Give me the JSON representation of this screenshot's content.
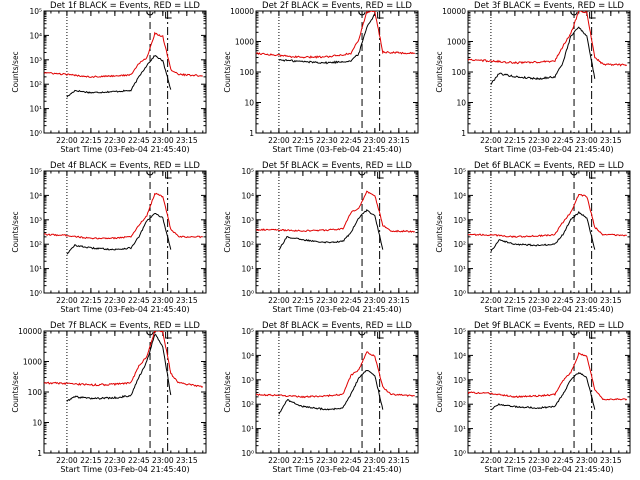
{
  "chart_data": [
    {
      "type": "line",
      "title": "Det 1f BLACK = Events, RED = LLD",
      "xlabel": "Start Time (03-Feb-04 21:45:40)",
      "ylabel": "Counts/sec",
      "x_ticks": [
        "22:00",
        "22:15",
        "22:30",
        "22:45",
        "23:00",
        "23:15"
      ],
      "y_scale": "log",
      "ylim": [
        1,
        100000
      ],
      "y_ticks": [
        "10⁰",
        "10¹",
        "10²",
        "10³",
        "10⁴",
        "10⁵"
      ],
      "series": [
        {
          "color": "#000000",
          "x": [
            "22:00",
            "22:05",
            "22:15",
            "22:30",
            "22:40",
            "22:45",
            "22:50",
            "22:55",
            "23:00",
            "23:05"
          ],
          "values": [
            30,
            55,
            45,
            50,
            55,
            200,
            600,
            1500,
            900,
            60
          ]
        },
        {
          "color": "#e00000",
          "x": [
            "21:45",
            "22:00",
            "22:15",
            "22:30",
            "22:40",
            "22:45",
            "22:50",
            "22:55",
            "23:00",
            "23:05",
            "23:10",
            "23:25"
          ],
          "values": [
            300,
            250,
            200,
            220,
            240,
            700,
            1200,
            12000,
            9000,
            400,
            250,
            220
          ]
        }
      ],
      "v_lines": [
        {
          "style": "dotted",
          "x": "22:00"
        },
        {
          "style": "dashed",
          "x": "22:52"
        },
        {
          "style": "dashdot",
          "x": "23:03"
        }
      ]
    },
    {
      "type": "line",
      "title": "Det 2f BLACK = Events, RED = LLD",
      "xlabel": "Start Time (03-Feb-04 21:45:40)",
      "ylabel": "Counts/sec",
      "x_ticks": [
        "22:00",
        "22:15",
        "22:30",
        "22:45",
        "23:00",
        "23:15"
      ],
      "y_scale": "log",
      "ylim": [
        1,
        10000
      ],
      "y_ticks": [
        "1",
        "10",
        "100",
        "1000",
        "10000"
      ],
      "series": [
        {
          "color": "#000000",
          "x": [
            "22:00",
            "22:15",
            "22:30",
            "22:45",
            "22:50",
            "22:55",
            "23:00"
          ],
          "values": [
            250,
            220,
            200,
            230,
            400,
            3000,
            8000
          ]
        },
        {
          "color": "#e00000",
          "x": [
            "21:45",
            "22:00",
            "22:15",
            "22:30",
            "22:45",
            "22:50",
            "22:55",
            "23:00",
            "23:05",
            "23:25"
          ],
          "values": [
            420,
            350,
            300,
            320,
            400,
            1200,
            9500,
            9500,
            450,
            400
          ]
        }
      ],
      "v_lines": [
        {
          "style": "dotted",
          "x": "22:00"
        },
        {
          "style": "dashed",
          "x": "22:52"
        },
        {
          "style": "dashdot",
          "x": "23:03"
        }
      ]
    },
    {
      "type": "line",
      "title": "Det 3f BLACK = Events, RED = LLD",
      "xlabel": "Start Time (03-Feb-04 21:45:40)",
      "ylabel": "Counts/sec",
      "x_ticks": [
        "22:00",
        "22:15",
        "22:30",
        "22:45",
        "23:00",
        "23:15"
      ],
      "y_scale": "log",
      "ylim": [
        1,
        10000
      ],
      "y_ticks": [
        "1",
        "10",
        "100",
        "1000",
        "10000"
      ],
      "series": [
        {
          "color": "#000000",
          "x": [
            "22:00",
            "22:05",
            "22:15",
            "22:30",
            "22:40",
            "22:45",
            "22:50",
            "22:55",
            "23:00",
            "23:05"
          ],
          "values": [
            40,
            90,
            70,
            60,
            70,
            200,
            1500,
            3000,
            1500,
            60
          ]
        },
        {
          "color": "#e00000",
          "x": [
            "21:45",
            "22:00",
            "22:15",
            "22:30",
            "22:40",
            "22:45",
            "22:50",
            "22:55",
            "23:00",
            "23:05",
            "23:10",
            "23:25"
          ],
          "values": [
            250,
            230,
            200,
            210,
            230,
            700,
            1800,
            10000,
            9000,
            300,
            180,
            170
          ]
        }
      ],
      "v_lines": [
        {
          "style": "dotted",
          "x": "22:00"
        },
        {
          "style": "dashed",
          "x": "22:52"
        },
        {
          "style": "dashdot",
          "x": "23:03"
        }
      ]
    },
    {
      "type": "line",
      "title": "Det 4f BLACK = Events, RED = LLD",
      "xlabel": "Start Time (03-Feb-04 21:45:40)",
      "ylabel": "Counts/sec",
      "x_ticks": [
        "22:00",
        "22:15",
        "22:30",
        "22:45",
        "23:00",
        "23:15"
      ],
      "y_scale": "log",
      "ylim": [
        1,
        100000
      ],
      "y_ticks": [
        "10⁰",
        "10¹",
        "10²",
        "10³",
        "10⁴",
        "10⁵"
      ],
      "series": [
        {
          "color": "#000000",
          "x": [
            "22:00",
            "22:05",
            "22:15",
            "22:30",
            "22:40",
            "22:45",
            "22:50",
            "22:55",
            "23:00",
            "23:05"
          ],
          "values": [
            40,
            90,
            70,
            60,
            70,
            200,
            900,
            1800,
            1200,
            60
          ]
        },
        {
          "color": "#e00000",
          "x": [
            "21:45",
            "22:00",
            "22:15",
            "22:30",
            "22:40",
            "22:45",
            "22:50",
            "22:55",
            "23:00",
            "23:05",
            "23:10",
            "23:25"
          ],
          "values": [
            250,
            230,
            170,
            180,
            200,
            600,
            1500,
            12000,
            9000,
            400,
            200,
            200
          ]
        }
      ],
      "v_lines": [
        {
          "style": "dotted",
          "x": "22:00"
        },
        {
          "style": "dashed",
          "x": "22:52"
        },
        {
          "style": "dashdot",
          "x": "23:03"
        }
      ]
    },
    {
      "type": "line",
      "title": "Det 5f BLACK = Events, RED = LLD",
      "xlabel": "Start Time (03-Feb-04 21:45:40)",
      "ylabel": "Counts/sec",
      "x_ticks": [
        "22:00",
        "22:15",
        "22:30",
        "22:45",
        "23:00",
        "23:15"
      ],
      "y_scale": "log",
      "ylim": [
        1,
        100000
      ],
      "y_ticks": [
        "10⁰",
        "10¹",
        "10²",
        "10³",
        "10⁴",
        "10⁵"
      ],
      "series": [
        {
          "color": "#000000",
          "x": [
            "22:00",
            "22:05",
            "22:15",
            "22:30",
            "22:40",
            "22:45",
            "22:50",
            "22:55",
            "23:00",
            "23:05"
          ],
          "values": [
            60,
            200,
            150,
            120,
            130,
            300,
            1200,
            2500,
            1500,
            60
          ]
        },
        {
          "color": "#e00000",
          "x": [
            "21:45",
            "22:00",
            "22:15",
            "22:30",
            "22:40",
            "22:45",
            "22:50",
            "22:55",
            "23:00",
            "23:05",
            "23:10",
            "23:25"
          ],
          "values": [
            400,
            380,
            350,
            380,
            420,
            2000,
            3000,
            14000,
            10000,
            600,
            350,
            330
          ]
        }
      ],
      "v_lines": [
        {
          "style": "dotted",
          "x": "22:00"
        },
        {
          "style": "dashed",
          "x": "22:52"
        },
        {
          "style": "dashdot",
          "x": "23:03"
        }
      ]
    },
    {
      "type": "line",
      "title": "Det 6f BLACK = Events, RED = LLD",
      "xlabel": "Start Time (03-Feb-04 21:45:40)",
      "ylabel": "Counts/sec",
      "x_ticks": [
        "22:00",
        "22:15",
        "22:30",
        "22:45",
        "23:00",
        "23:15"
      ],
      "y_scale": "log",
      "ylim": [
        1,
        100000
      ],
      "y_ticks": [
        "10⁰",
        "10¹",
        "10²",
        "10³",
        "10⁴",
        "10⁵"
      ],
      "series": [
        {
          "color": "#000000",
          "x": [
            "22:00",
            "22:05",
            "22:15",
            "22:30",
            "22:40",
            "22:45",
            "22:50",
            "22:55",
            "23:00",
            "23:05"
          ],
          "values": [
            50,
            150,
            100,
            90,
            100,
            250,
            1000,
            2000,
            1200,
            60
          ]
        },
        {
          "color": "#e00000",
          "x": [
            "21:45",
            "22:00",
            "22:15",
            "22:30",
            "22:40",
            "22:45",
            "22:50",
            "22:55",
            "23:00",
            "23:05",
            "23:10",
            "23:25"
          ],
          "values": [
            250,
            240,
            200,
            220,
            250,
            800,
            2000,
            11000,
            9000,
            500,
            250,
            230
          ]
        }
      ],
      "v_lines": [
        {
          "style": "dotted",
          "x": "22:00"
        },
        {
          "style": "dashed",
          "x": "22:52"
        },
        {
          "style": "dashdot",
          "x": "23:03"
        }
      ]
    },
    {
      "type": "line",
      "title": "Det 7f BLACK = Events, RED = LLD",
      "xlabel": "Start Time (03-Feb-04 21:45:40)",
      "ylabel": "Counts/sec",
      "x_ticks": [
        "22:00",
        "22:15",
        "22:30",
        "22:45",
        "23:00",
        "23:15"
      ],
      "y_scale": "log",
      "ylim": [
        1,
        10000
      ],
      "y_ticks": [
        "1",
        "10",
        "100",
        "1000",
        "10000"
      ],
      "series": [
        {
          "color": "#000000",
          "x": [
            "22:00",
            "22:05",
            "22:15",
            "22:30",
            "22:40",
            "22:45",
            "22:50",
            "22:55",
            "23:00",
            "23:05"
          ],
          "values": [
            50,
            70,
            60,
            65,
            75,
            300,
            1000,
            8000,
            3000,
            80
          ]
        },
        {
          "color": "#e00000",
          "x": [
            "21:45",
            "22:00",
            "22:15",
            "22:30",
            "22:40",
            "22:45",
            "22:50",
            "22:55",
            "23:00",
            "23:05",
            "23:10",
            "23:25"
          ],
          "values": [
            200,
            190,
            170,
            180,
            200,
            700,
            1500,
            10000,
            9500,
            400,
            200,
            150
          ]
        }
      ],
      "v_lines": [
        {
          "style": "dotted",
          "x": "22:00"
        },
        {
          "style": "dashed",
          "x": "22:52"
        },
        {
          "style": "dashdot",
          "x": "23:03"
        }
      ]
    },
    {
      "type": "line",
      "title": "Det 8f BLACK = Events, RED = LLD",
      "xlabel": "Start Time (03-Feb-04 21:45:40)",
      "ylabel": "Counts/sec",
      "x_ticks": [
        "22:00",
        "22:15",
        "22:30",
        "22:45",
        "23:00",
        "23:15"
      ],
      "y_scale": "log",
      "ylim": [
        1,
        100000
      ],
      "y_ticks": [
        "10⁰",
        "10¹",
        "10²",
        "10³",
        "10⁴",
        "10⁵"
      ],
      "series": [
        {
          "color": "#000000",
          "x": [
            "22:00",
            "22:05",
            "22:15",
            "22:30",
            "22:40",
            "22:45",
            "22:50",
            "22:55",
            "23:00",
            "23:05"
          ],
          "values": [
            40,
            150,
            80,
            60,
            70,
            250,
            1200,
            2500,
            1500,
            60
          ]
        },
        {
          "color": "#e00000",
          "x": [
            "21:45",
            "22:00",
            "22:15",
            "22:30",
            "22:40",
            "22:45",
            "22:50",
            "22:55",
            "23:00",
            "23:05",
            "23:10",
            "23:25"
          ],
          "values": [
            250,
            230,
            200,
            220,
            250,
            1500,
            2500,
            14000,
            9000,
            500,
            250,
            220
          ]
        }
      ],
      "v_lines": [
        {
          "style": "dotted",
          "x": "22:00"
        },
        {
          "style": "dashed",
          "x": "22:52"
        },
        {
          "style": "dashdot",
          "x": "23:03"
        }
      ]
    },
    {
      "type": "line",
      "title": "Det 9f BLACK = Events, RED = LLD",
      "xlabel": "Start Time (03-Feb-04 21:45:40)",
      "ylabel": "Counts/sec",
      "x_ticks": [
        "22:00",
        "22:15",
        "22:30",
        "22:45",
        "23:00",
        "23:15"
      ],
      "y_scale": "log",
      "ylim": [
        1,
        100000
      ],
      "y_ticks": [
        "10⁰",
        "10¹",
        "10²",
        "10³",
        "10⁴",
        "10⁵"
      ],
      "series": [
        {
          "color": "#000000",
          "x": [
            "22:00",
            "22:05",
            "22:15",
            "22:30",
            "22:40",
            "22:45",
            "22:50",
            "22:55",
            "23:00",
            "23:05"
          ],
          "values": [
            60,
            100,
            80,
            70,
            80,
            250,
            1000,
            2000,
            1200,
            60
          ]
        },
        {
          "color": "#e00000",
          "x": [
            "21:45",
            "22:00",
            "22:15",
            "22:30",
            "22:40",
            "22:45",
            "22:50",
            "22:55",
            "23:00",
            "23:05",
            "23:10",
            "23:25"
          ],
          "values": [
            300,
            280,
            200,
            220,
            250,
            900,
            2000,
            12000,
            9000,
            400,
            160,
            160
          ]
        }
      ],
      "v_lines": [
        {
          "style": "dotted",
          "x": "22:00"
        },
        {
          "style": "dashed",
          "x": "22:52"
        },
        {
          "style": "dashdot",
          "x": "23:03"
        }
      ]
    }
  ]
}
